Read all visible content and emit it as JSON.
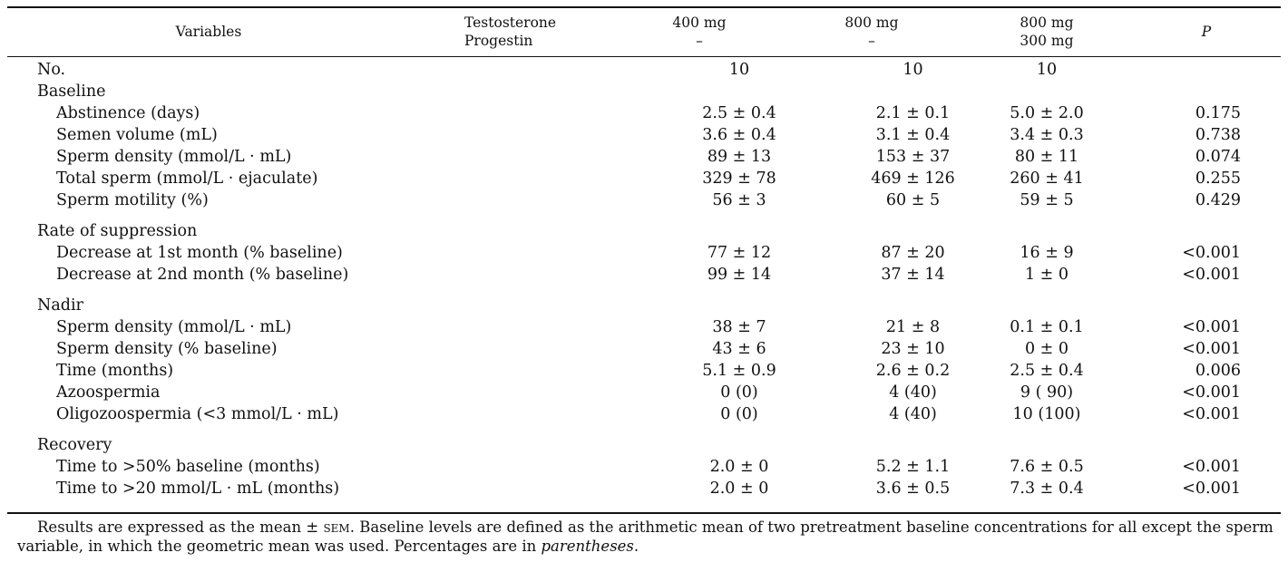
{
  "header": {
    "variables": "Variables",
    "group_label_1": "Testosterone",
    "group_label_2": "Progestin",
    "col1_line1": "400 mg",
    "col1_line2": "–",
    "col2_line1": "800 mg",
    "col2_line2": "–",
    "col3_line1": "800 mg",
    "col3_line2": "300 mg",
    "p": "P"
  },
  "rows": [
    {
      "type": "section",
      "label": "No.",
      "v1": "10",
      "v2": "10",
      "v3": "10",
      "p": ""
    },
    {
      "type": "section",
      "label": "Baseline",
      "v1": "",
      "v2": "",
      "v3": "",
      "p": ""
    },
    {
      "type": "item",
      "label": "Abstinence (days)",
      "v1": "2.5 ± 0.4",
      "v2": "2.1 ± 0.1",
      "v3": "5.0 ± 2.0",
      "p": "0.175"
    },
    {
      "type": "item",
      "label": "Semen volume (mL)",
      "v1": "3.6 ± 0.4",
      "v2": "3.1 ± 0.4",
      "v3": "3.4 ± 0.3",
      "p": "0.738"
    },
    {
      "type": "item",
      "label": "Sperm density (mmol/L · mL)",
      "v1": "89 ± 13",
      "v2": "153 ± 37",
      "v3": "80 ± 11",
      "p": "0.074"
    },
    {
      "type": "item",
      "label": "Total sperm (mmol/L · ejaculate)",
      "v1": "329 ± 78",
      "v2": "469 ± 126",
      "v3": "260 ± 41",
      "p": "0.255"
    },
    {
      "type": "item",
      "label": "Sperm motility (%)",
      "v1": "56 ± 3",
      "v2": "60 ± 5",
      "v3": "59 ± 5",
      "p": "0.429"
    },
    {
      "type": "gap"
    },
    {
      "type": "section",
      "label": "Rate of suppression",
      "v1": "",
      "v2": "",
      "v3": "",
      "p": ""
    },
    {
      "type": "item",
      "label": "Decrease at 1st month (% baseline)",
      "v1": "77 ± 12",
      "v2": "87 ± 20",
      "v3": "16 ± 9",
      "p": "<0.001"
    },
    {
      "type": "item",
      "label": "Decrease at 2nd month (% baseline)",
      "v1": "99 ± 14",
      "v2": "37 ± 14",
      "v3": "1 ± 0",
      "p": "<0.001"
    },
    {
      "type": "gap"
    },
    {
      "type": "section",
      "label": "Nadir",
      "v1": "",
      "v2": "",
      "v3": "",
      "p": ""
    },
    {
      "type": "item",
      "label": "Sperm density (mmol/L · mL)",
      "v1": "38 ± 7",
      "v2": "21 ± 8",
      "v3": "0.1 ± 0.1",
      "p": "<0.001"
    },
    {
      "type": "item",
      "label": "Sperm density (% baseline)",
      "v1": "43 ± 6",
      "v2": "23 ± 10",
      "v3": "0 ± 0",
      "p": "<0.001"
    },
    {
      "type": "item",
      "label": "Time (months)",
      "v1": "5.1 ± 0.9",
      "v2": "2.6 ± 0.2",
      "v3": "2.5 ± 0.4",
      "p": "0.006"
    },
    {
      "type": "item",
      "label": "Azoospermia",
      "v1": "0  (0)",
      "v2": "4  (40)",
      "v3": "9  ( 90)",
      "p": "<0.001"
    },
    {
      "type": "item",
      "label": "Oligozoospermia (<3 mmol/L · mL)",
      "v1": "0  (0)",
      "v2": "4  (40)",
      "v3": "10  (100)",
      "p": "<0.001"
    },
    {
      "type": "gap"
    },
    {
      "type": "section",
      "label": "Recovery",
      "v1": "",
      "v2": "",
      "v3": "",
      "p": ""
    },
    {
      "type": "item",
      "label": "Time to >50% baseline (months)",
      "v1": "2.0 ± 0",
      "v2": "5.2 ± 1.1",
      "v3": "7.6 ± 0.5",
      "p": "<0.001"
    },
    {
      "type": "item",
      "label": "Time to >20 mmol/L · mL (months)",
      "v1": "2.0 ± 0",
      "v2": "3.6 ± 0.5",
      "v3": "7.3 ± 0.4",
      "p": "<0.001"
    }
  ],
  "footnote": {
    "part1": "Results are expressed as the mean ± ",
    "sem": "sem",
    "part2": ". Baseline levels are defined as the arithmetic mean of two pretreatment baseline concentrations for all except the sperm variable, in which the geometric mean was used. Percentages are in ",
    "italic": "parentheses",
    "part3": "."
  }
}
